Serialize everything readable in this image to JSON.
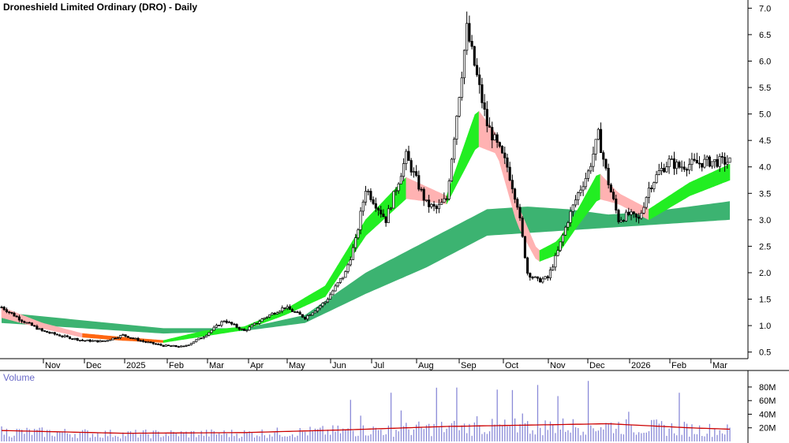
{
  "chart_data": {
    "type": "candlestick",
    "title": "Droneshield Limited Ordinary (DRO) - Daily",
    "x_tick_labels": [
      "Nov",
      "Dec",
      "2025",
      "Feb",
      "Mar",
      "Apr",
      "May",
      "Jun",
      "Jul",
      "Aug",
      "Sep",
      "Oct",
      "Nov",
      "Dec",
      "2026",
      "Feb",
      "Feb",
      "Mar"
    ],
    "y_tick_labels": [
      "7.0",
      "6.5",
      "6.0",
      "5.5",
      "5.0",
      "4.5",
      "4.0",
      "3.5",
      "3.0",
      "2.5",
      "2.0",
      "1.5",
      "1.0",
      "0.5"
    ],
    "y_ticks": [
      7.0,
      6.5,
      6.0,
      5.5,
      5.0,
      4.5,
      4.0,
      3.5,
      3.0,
      2.5,
      2.0,
      1.5,
      1.0,
      0.5
    ],
    "ylim": [
      0.42,
      7.08
    ],
    "price_series": {
      "days": [
        0,
        10,
        20,
        30,
        40,
        50,
        60,
        70,
        80,
        90,
        100,
        110,
        120,
        130,
        140,
        150,
        160,
        170,
        175,
        180,
        190,
        200,
        210,
        215,
        220,
        230,
        240,
        250,
        255,
        260,
        265,
        270,
        275,
        280,
        285,
        290,
        295,
        300,
        305,
        310,
        315,
        320,
        325,
        330,
        335,
        340,
        350,
        360
      ],
      "close": [
        1.35,
        1.1,
        0.9,
        0.8,
        0.72,
        0.7,
        0.82,
        0.7,
        0.62,
        0.6,
        0.8,
        1.1,
        0.9,
        1.15,
        1.35,
        1.15,
        1.45,
        2.0,
        2.6,
        3.6,
        3.0,
        4.2,
        3.3,
        3.2,
        3.4,
        6.6,
        4.8,
        4.0,
        3.3,
        2.0,
        1.85,
        1.9,
        2.4,
        3.0,
        3.5,
        3.9,
        4.6,
        3.7,
        3.0,
        3.1,
        3.0,
        3.6,
        3.9,
        4.1,
        4.0,
        4.05,
        4.1,
        4.1
      ]
    },
    "moving_average_bands": [
      {
        "name": "short-term",
        "days": [
          0,
          20,
          40,
          60,
          80,
          100,
          120,
          140,
          160,
          180,
          200,
          220,
          235,
          245,
          255,
          265,
          275,
          285,
          295,
          305,
          320,
          340,
          360
        ],
        "upper": [
          1.35,
          1.05,
          0.85,
          0.78,
          0.72,
          0.9,
          0.98,
          1.3,
          1.75,
          3.0,
          3.8,
          3.45,
          5.1,
          4.6,
          3.3,
          2.4,
          2.6,
          3.2,
          3.9,
          3.5,
          3.2,
          3.7,
          4.05
        ],
        "lower": [
          1.15,
          0.95,
          0.78,
          0.72,
          0.68,
          0.8,
          0.92,
          1.2,
          1.55,
          2.7,
          3.4,
          3.3,
          4.4,
          4.25,
          2.9,
          2.2,
          2.35,
          2.9,
          3.4,
          3.3,
          3.0,
          3.45,
          3.75
        ],
        "colors": {
          "rising": "#22ee22",
          "falling_strong": "#ff6611",
          "falling_weak": "#ffb2b2"
        }
      },
      {
        "name": "long-term",
        "days": [
          0,
          40,
          80,
          120,
          150,
          180,
          210,
          240,
          260,
          280,
          300,
          320,
          340,
          360
        ],
        "upper": [
          1.25,
          1.1,
          0.95,
          0.95,
          1.2,
          2.0,
          2.6,
          3.2,
          3.25,
          3.2,
          3.1,
          3.15,
          3.25,
          3.35
        ],
        "lower": [
          1.05,
          0.95,
          0.85,
          0.9,
          1.05,
          1.6,
          2.1,
          2.7,
          2.75,
          2.8,
          2.85,
          2.9,
          2.95,
          3.0
        ],
        "color": "#3cb371"
      }
    ],
    "volume": {
      "label": "Volume",
      "y_tick_labels": [
        "80M",
        "60M",
        "40M",
        "20M"
      ],
      "y_ticks": [
        80,
        60,
        40,
        20
      ],
      "ylim": [
        0,
        95
      ],
      "average_line_color": "#cc0000",
      "bar_color": "#8a8ad8",
      "spike_days": [
        172,
        178,
        192,
        198,
        215,
        225,
        235,
        245,
        252,
        258,
        265,
        275,
        290,
        310,
        335
      ],
      "average": {
        "days": [
          0,
          60,
          120,
          170,
          220,
          260,
          300,
          340,
          360
        ],
        "values": [
          16,
          12,
          13,
          17,
          22,
          24,
          26,
          20,
          18
        ]
      }
    },
    "grid": false,
    "legend": "none"
  }
}
